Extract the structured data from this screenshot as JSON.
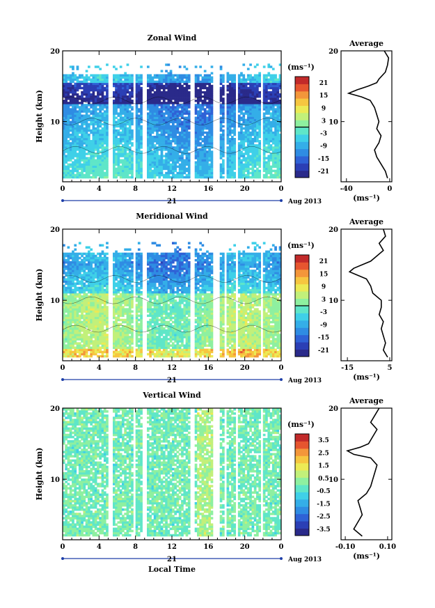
{
  "chart_data": [
    {
      "type": "heatmap",
      "title": "Zonal Wind",
      "ylabel": "Height (km)",
      "x_ticks": [
        "0",
        "4",
        "8",
        "12",
        "16",
        "20",
        "0"
      ],
      "y_ticks": [
        "10",
        "20"
      ],
      "xlim": [
        0,
        24
      ],
      "ylim": [
        1.5,
        20
      ],
      "date_label": "21",
      "month_label": "Aug 2013",
      "colorbar": {
        "unit": "(ms⁻¹)",
        "ticks": [
          "21",
          "15",
          "9",
          "3",
          "-3",
          "-9",
          "-15",
          "-21"
        ],
        "range": [
          -24,
          24
        ]
      },
      "average": {
        "title": "Average",
        "xlabel": "(ms⁻¹)",
        "x_ticks": [
          "-40",
          "0"
        ],
        "xlim": [
          -45,
          2
        ],
        "y_ticks": [
          "10",
          "20"
        ],
        "heights": [
          2,
          3,
          4,
          5,
          6,
          7,
          8,
          9,
          10,
          11,
          12,
          13,
          13.5,
          14,
          14.5,
          15,
          15.5,
          16,
          17,
          18,
          19,
          20
        ],
        "values": [
          -2,
          -4,
          -8,
          -12,
          -14,
          -10,
          -8,
          -12,
          -10,
          -12,
          -14,
          -18,
          -26,
          -38,
          -30,
          -20,
          -12,
          -10,
          -4,
          -2,
          -1,
          -5
        ]
      }
    },
    {
      "type": "heatmap",
      "title": "Meridional Wind",
      "ylabel": "Height (km)",
      "x_ticks": [
        "0",
        "4",
        "8",
        "12",
        "16",
        "20",
        "0"
      ],
      "y_ticks": [
        "10",
        "20"
      ],
      "xlim": [
        0,
        24
      ],
      "ylim": [
        1.5,
        20
      ],
      "date_label": "21",
      "month_label": "Aug 2013",
      "colorbar": {
        "unit": "(ms⁻¹)",
        "ticks": [
          "21",
          "15",
          "9",
          "3",
          "-3",
          "-9",
          "-15",
          "-21"
        ],
        "range": [
          -24,
          24
        ]
      },
      "average": {
        "title": "Average",
        "xlabel": "(ms⁻¹)",
        "x_ticks": [
          "-15",
          "5"
        ],
        "xlim": [
          -18,
          6
        ],
        "y_ticks": [
          "10",
          "20"
        ],
        "heights": [
          2,
          3,
          4,
          5,
          6,
          7,
          8,
          9,
          10,
          11,
          12,
          13,
          13.5,
          14,
          14.5,
          15,
          15.5,
          16,
          17,
          18,
          19,
          20
        ],
        "values": [
          4,
          2,
          3,
          2,
          1,
          2,
          0,
          1,
          1,
          -3,
          -4,
          -6,
          -10,
          -14,
          -12,
          -8,
          -4,
          -2,
          2,
          0,
          3,
          2
        ]
      }
    },
    {
      "type": "heatmap",
      "title": "Vertical Wind",
      "ylabel": "Height (km)",
      "xlabel": "Local Time",
      "x_ticks": [
        "0",
        "4",
        "8",
        "12",
        "16",
        "20",
        "0"
      ],
      "y_ticks": [
        "10",
        "20"
      ],
      "xlim": [
        0,
        24
      ],
      "ylim": [
        1.5,
        20
      ],
      "date_label": "21",
      "month_label": "Aug 2013",
      "colorbar": {
        "unit": "(ms⁻¹)",
        "ticks": [
          "3.5",
          "2.5",
          "1.5",
          "0.5",
          "-0.5",
          "-1.5",
          "-2.5",
          "-3.5"
        ],
        "range": [
          -4,
          4
        ]
      },
      "average": {
        "title": "Average",
        "xlabel": "(ms⁻¹)",
        "x_ticks": [
          "-0.10",
          "0.10"
        ],
        "xlim": [
          -0.12,
          0.12
        ],
        "y_ticks": [
          "10",
          "20"
        ],
        "heights": [
          2,
          3,
          4,
          5,
          6,
          7,
          8,
          9,
          10,
          11,
          12,
          13,
          13.5,
          14,
          14.5,
          15,
          16,
          17,
          18,
          19,
          20
        ],
        "values": [
          -0.02,
          -0.06,
          -0.04,
          -0.02,
          -0.03,
          -0.04,
          0.0,
          0.02,
          0.03,
          0.04,
          0.05,
          0.02,
          -0.06,
          -0.09,
          -0.03,
          0.01,
          0.03,
          0.05,
          0.02,
          0.04,
          0.06
        ]
      }
    }
  ]
}
